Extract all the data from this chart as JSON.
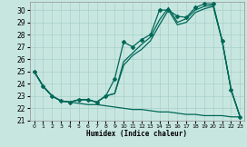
{
  "xlabel": "Humidex (Indice chaleur)",
  "background_color": "#c8e6e0",
  "line_color": "#006858",
  "grid_color": "#a8d0c8",
  "xlim": [
    -0.5,
    23.5
  ],
  "ylim": [
    21,
    30.7
  ],
  "yticks": [
    21,
    22,
    23,
    24,
    25,
    26,
    27,
    28,
    29,
    30
  ],
  "xticks": [
    0,
    1,
    2,
    3,
    4,
    5,
    6,
    7,
    8,
    9,
    10,
    11,
    12,
    13,
    14,
    15,
    16,
    17,
    18,
    19,
    20,
    21,
    22,
    23
  ],
  "series1_x": [
    0,
    1,
    2,
    3,
    4,
    5,
    6,
    7,
    8,
    9,
    10,
    11,
    12,
    13,
    14,
    15,
    16,
    17,
    18,
    19,
    20,
    21,
    22,
    23
  ],
  "series1_y": [
    25.0,
    23.8,
    23.0,
    22.6,
    22.5,
    22.7,
    22.7,
    22.5,
    23.0,
    24.4,
    27.4,
    27.0,
    27.6,
    28.0,
    30.0,
    30.0,
    29.5,
    29.4,
    30.2,
    30.5,
    30.5,
    27.5,
    23.5,
    21.3
  ],
  "series2_x": [
    0,
    1,
    2,
    3,
    4,
    5,
    6,
    7,
    8,
    9,
    10,
    11,
    12,
    13,
    14,
    15,
    16,
    17,
    18,
    19,
    20,
    21,
    22,
    23
  ],
  "series2_y": [
    25.0,
    23.8,
    23.0,
    22.6,
    22.5,
    22.7,
    22.7,
    22.5,
    23.0,
    23.2,
    25.8,
    26.5,
    27.2,
    27.8,
    29.2,
    30.2,
    29.0,
    29.3,
    30.0,
    30.3,
    30.4,
    27.5,
    23.5,
    21.3
  ],
  "series3_x": [
    0,
    1,
    2,
    3,
    4,
    5,
    6,
    7,
    8,
    9,
    10,
    11,
    12,
    13,
    14,
    15,
    16,
    17,
    18,
    19,
    20,
    21,
    22,
    23
  ],
  "series3_y": [
    25.0,
    23.8,
    23.0,
    22.6,
    22.5,
    22.7,
    22.7,
    22.5,
    23.0,
    23.2,
    25.5,
    26.3,
    26.8,
    27.5,
    28.8,
    30.0,
    28.8,
    29.0,
    29.8,
    30.1,
    30.3,
    27.5,
    23.5,
    21.3
  ],
  "series4_x": [
    0,
    1,
    2,
    3,
    4,
    5,
    6,
    7,
    8,
    9,
    10,
    11,
    12,
    13,
    14,
    15,
    16,
    17,
    18,
    19,
    20,
    21,
    22,
    23
  ],
  "series4_y": [
    25.0,
    23.8,
    23.0,
    22.6,
    22.5,
    22.4,
    22.3,
    22.3,
    22.2,
    22.1,
    22.0,
    21.9,
    21.9,
    21.8,
    21.7,
    21.7,
    21.6,
    21.5,
    21.5,
    21.4,
    21.4,
    21.4,
    21.3,
    21.3
  ],
  "marker_x": [
    0,
    1,
    2,
    3,
    4,
    5,
    6,
    7,
    8,
    9,
    10,
    11,
    12,
    13,
    14,
    15,
    16,
    17,
    18,
    19,
    20,
    21,
    22,
    23
  ],
  "marker_y": [
    25.0,
    23.8,
    23.0,
    22.6,
    22.5,
    22.7,
    22.7,
    22.5,
    23.0,
    24.4,
    27.4,
    27.0,
    27.6,
    28.0,
    30.0,
    30.0,
    29.5,
    29.4,
    30.2,
    30.5,
    30.5,
    27.5,
    23.5,
    21.3
  ]
}
